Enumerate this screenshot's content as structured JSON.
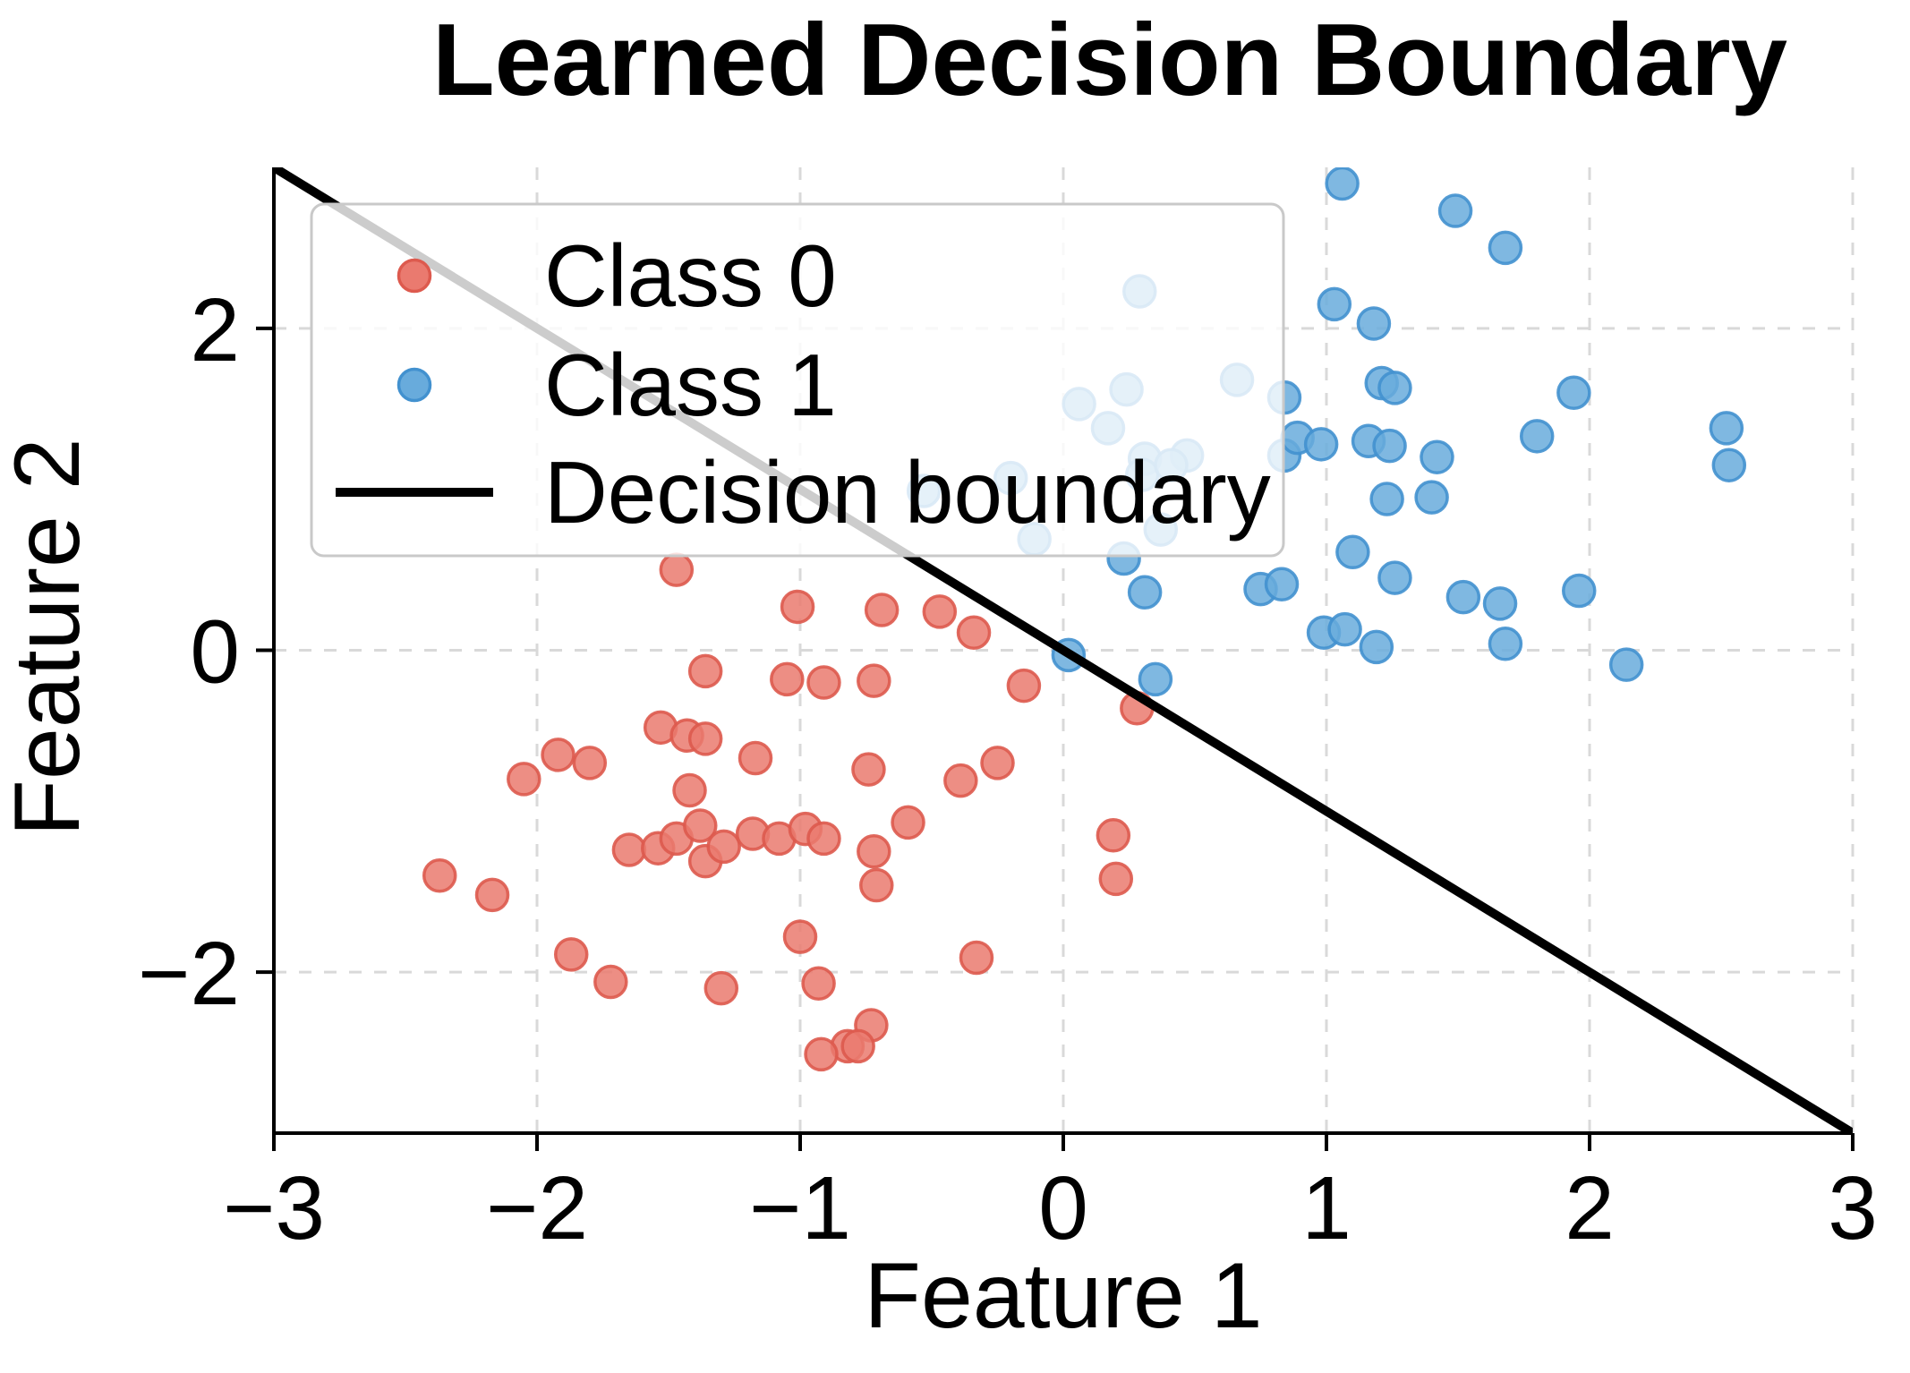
{
  "title": "Learned Decision Boundary",
  "chart_data": {
    "type": "scatter",
    "title": "Learned Decision Boundary",
    "xlabel": "Feature 1",
    "ylabel": "Feature 2",
    "xlim": [
      -3,
      3
    ],
    "ylim": [
      -3,
      3
    ],
    "xticks": [
      -3,
      -2,
      -1,
      0,
      1,
      2,
      3
    ],
    "yticks": [
      -2,
      0,
      2
    ],
    "grid": true,
    "legend": {
      "position": "upper left",
      "entries": [
        {
          "label": "Class 0",
          "marker": "circle",
          "series": "class0"
        },
        {
          "label": "Class 1",
          "marker": "circle",
          "series": "class1"
        },
        {
          "label": "Decision boundary",
          "marker": "line",
          "series": "boundary"
        }
      ]
    },
    "series": [
      {
        "name": "Class 0",
        "kind": "scatter",
        "fill": "#ea7a6f",
        "edge": "#dd5a4e",
        "points": [
          [
            -1.47,
            0.5
          ],
          [
            -1.01,
            0.27
          ],
          [
            -0.69,
            0.25
          ],
          [
            -0.47,
            0.24
          ],
          [
            -0.34,
            0.11
          ],
          [
            -1.36,
            -0.13
          ],
          [
            -1.05,
            -0.18
          ],
          [
            -0.91,
            -0.2
          ],
          [
            -0.72,
            -0.19
          ],
          [
            -0.15,
            -0.22
          ],
          [
            0.28,
            -0.36
          ],
          [
            -1.53,
            -0.48
          ],
          [
            -1.43,
            -0.53
          ],
          [
            -1.36,
            -0.55
          ],
          [
            -1.92,
            -0.65
          ],
          [
            -1.8,
            -0.7
          ],
          [
            -1.17,
            -0.67
          ],
          [
            -0.74,
            -0.74
          ],
          [
            -2.05,
            -0.8
          ],
          [
            -1.42,
            -0.87
          ],
          [
            -0.39,
            -0.81
          ],
          [
            -0.25,
            -0.7
          ],
          [
            -0.59,
            -1.07
          ],
          [
            -1.65,
            -1.24
          ],
          [
            -1.54,
            -1.23
          ],
          [
            -1.47,
            -1.17
          ],
          [
            -1.38,
            -1.09
          ],
          [
            -1.36,
            -1.31
          ],
          [
            -1.29,
            -1.22
          ],
          [
            -1.18,
            -1.14
          ],
          [
            -1.08,
            -1.17
          ],
          [
            -0.98,
            -1.11
          ],
          [
            -0.91,
            -1.17
          ],
          [
            -0.72,
            -1.25
          ],
          [
            -0.71,
            -1.46
          ],
          [
            0.19,
            -1.15
          ],
          [
            0.2,
            -1.42
          ],
          [
            -2.37,
            -1.4
          ],
          [
            -2.17,
            -1.52
          ],
          [
            -1.0,
            -1.78
          ],
          [
            -1.87,
            -1.89
          ],
          [
            -0.33,
            -1.91
          ],
          [
            -1.72,
            -2.06
          ],
          [
            -0.93,
            -2.07
          ],
          [
            -1.3,
            -2.1
          ],
          [
            -0.73,
            -2.33
          ],
          [
            -0.82,
            -2.46
          ],
          [
            -0.78,
            -2.46
          ],
          [
            -0.92,
            -2.51
          ]
        ]
      },
      {
        "name": "Class 1",
        "kind": "scatter",
        "fill": "#68abdc",
        "edge": "#4291cf",
        "points": [
          [
            1.06,
            2.9
          ],
          [
            1.49,
            2.73
          ],
          [
            1.68,
            2.5
          ],
          [
            0.29,
            2.23
          ],
          [
            1.03,
            2.15
          ],
          [
            1.18,
            2.03
          ],
          [
            0.24,
            1.62
          ],
          [
            0.06,
            1.53
          ],
          [
            0.17,
            1.38
          ],
          [
            0.66,
            1.68
          ],
          [
            0.84,
            1.57
          ],
          [
            1.21,
            1.66
          ],
          [
            1.26,
            1.63
          ],
          [
            1.94,
            1.6
          ],
          [
            1.8,
            1.33
          ],
          [
            1.16,
            1.3
          ],
          [
            1.24,
            1.27
          ],
          [
            1.42,
            1.2
          ],
          [
            2.52,
            1.38
          ],
          [
            2.53,
            1.15
          ],
          [
            0.84,
            1.21
          ],
          [
            0.89,
            1.32
          ],
          [
            0.98,
            1.28
          ],
          [
            0.47,
            1.21
          ],
          [
            0.31,
            1.19
          ],
          [
            0.3,
            1.09
          ],
          [
            0.41,
            1.15
          ],
          [
            -0.53,
            0.99
          ],
          [
            -0.2,
            1.07
          ],
          [
            -0.11,
            0.69
          ],
          [
            0.23,
            0.57
          ],
          [
            0.37,
            0.75
          ],
          [
            0.31,
            0.36
          ],
          [
            0.02,
            -0.03
          ],
          [
            0.35,
            -0.18
          ],
          [
            0.75,
            0.38
          ],
          [
            0.83,
            0.41
          ],
          [
            1.1,
            0.61
          ],
          [
            0.99,
            0.11
          ],
          [
            1.07,
            0.13
          ],
          [
            1.19,
            0.02
          ],
          [
            1.23,
            0.94
          ],
          [
            1.4,
            0.95
          ],
          [
            1.26,
            0.45
          ],
          [
            1.52,
            0.33
          ],
          [
            1.66,
            0.29
          ],
          [
            1.96,
            0.37
          ],
          [
            1.68,
            0.04
          ],
          [
            2.14,
            -0.09
          ]
        ]
      },
      {
        "name": "Decision boundary",
        "kind": "line",
        "color": "#000000",
        "points": [
          [
            -3,
            3
          ],
          [
            3,
            -3
          ]
        ]
      }
    ]
  },
  "colors": {
    "class0_fill": "#ea7a6f",
    "class0_edge": "#dd5a4e",
    "class1_fill": "#68abdc",
    "class1_edge": "#4291cf",
    "boundary": "#000000",
    "grid": "#d9d9d9",
    "spine": "#000000",
    "legend_bg": "rgba(255,255,255,0.8)",
    "legend_border": "#c9c9c9",
    "text": "#000000"
  }
}
